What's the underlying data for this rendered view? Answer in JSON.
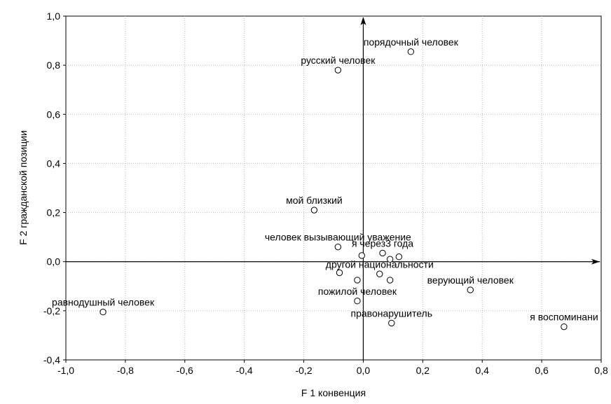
{
  "chart_data": {
    "type": "scatter",
    "title": "",
    "xlabel": "F 1 конвенция",
    "ylabel": "F 2 гражданской позиции",
    "xlim": [
      -1.0,
      0.8
    ],
    "ylim": [
      -0.4,
      1.0
    ],
    "x_ticks": [
      "-1,0",
      "-0,8",
      "-0,6",
      "-0,4",
      "-0,2",
      "0,0",
      "0,2",
      "0,4",
      "0,6",
      "0,8"
    ],
    "y_ticks": [
      "1,0",
      "0,8",
      "0,6",
      "0,4",
      "0,2",
      "0,0",
      "-0,2",
      "-0,4"
    ],
    "grid": true,
    "legend": "none",
    "marker": "open-circle",
    "points": [
      {
        "label": "порядочный человек",
        "x": 0.16,
        "y": 0.855
      },
      {
        "label": "русский человек",
        "x": -0.085,
        "y": 0.78
      },
      {
        "label": "мой близкий",
        "x": -0.165,
        "y": 0.21
      },
      {
        "label": "человек вызывающий уважение",
        "x": -0.085,
        "y": 0.06
      },
      {
        "label": "я через3 года",
        "x": 0.065,
        "y": 0.035
      },
      {
        "label": "",
        "x": -0.005,
        "y": 0.025
      },
      {
        "label": "",
        "x": 0.09,
        "y": 0.01
      },
      {
        "label": "",
        "x": 0.12,
        "y": 0.02
      },
      {
        "label": "",
        "x": -0.08,
        "y": -0.045
      },
      {
        "label": "другой национальности",
        "x": 0.055,
        "y": -0.05
      },
      {
        "label": "",
        "x": -0.02,
        "y": -0.075
      },
      {
        "label": "",
        "x": 0.09,
        "y": -0.075
      },
      {
        "label": "верующий человек",
        "x": 0.36,
        "y": -0.115
      },
      {
        "label": "пожилой человек",
        "x": -0.02,
        "y": -0.16
      },
      {
        "label": "равнодушный человек",
        "x": -0.875,
        "y": -0.205
      },
      {
        "label": "правонарушитель",
        "x": 0.095,
        "y": -0.25
      },
      {
        "label": "я воспоминани",
        "x": 0.675,
        "y": -0.265
      }
    ]
  }
}
